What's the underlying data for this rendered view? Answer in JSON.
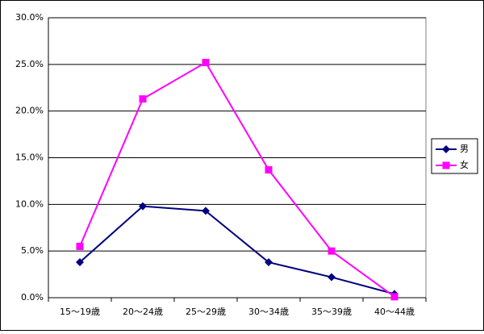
{
  "chart_data": {
    "type": "line",
    "categories": [
      "15～19歳",
      "20～24歳",
      "25～29歳",
      "30～34歳",
      "35～39歳",
      "40～44歳"
    ],
    "series": [
      {
        "name": "男",
        "color": "#000080",
        "marker": "diamond",
        "values": [
          3.8,
          9.8,
          9.3,
          3.8,
          2.2,
          0.4
        ]
      },
      {
        "name": "女",
        "color": "#ff00ff",
        "marker": "square",
        "values": [
          5.5,
          21.3,
          25.2,
          13.7,
          5.0,
          0.1
        ]
      }
    ],
    "ylim": [
      0,
      30
    ],
    "yticks": [
      {
        "value": 0,
        "label": "0.0%"
      },
      {
        "value": 5,
        "label": "5.0%"
      },
      {
        "value": 10,
        "label": "10.0%"
      },
      {
        "value": 15,
        "label": "15.0%"
      },
      {
        "value": 20,
        "label": "20.0%"
      },
      {
        "value": 25,
        "label": "25.0%"
      },
      {
        "value": 30,
        "label": "30.0%"
      }
    ],
    "grid": true,
    "legend": "right"
  }
}
